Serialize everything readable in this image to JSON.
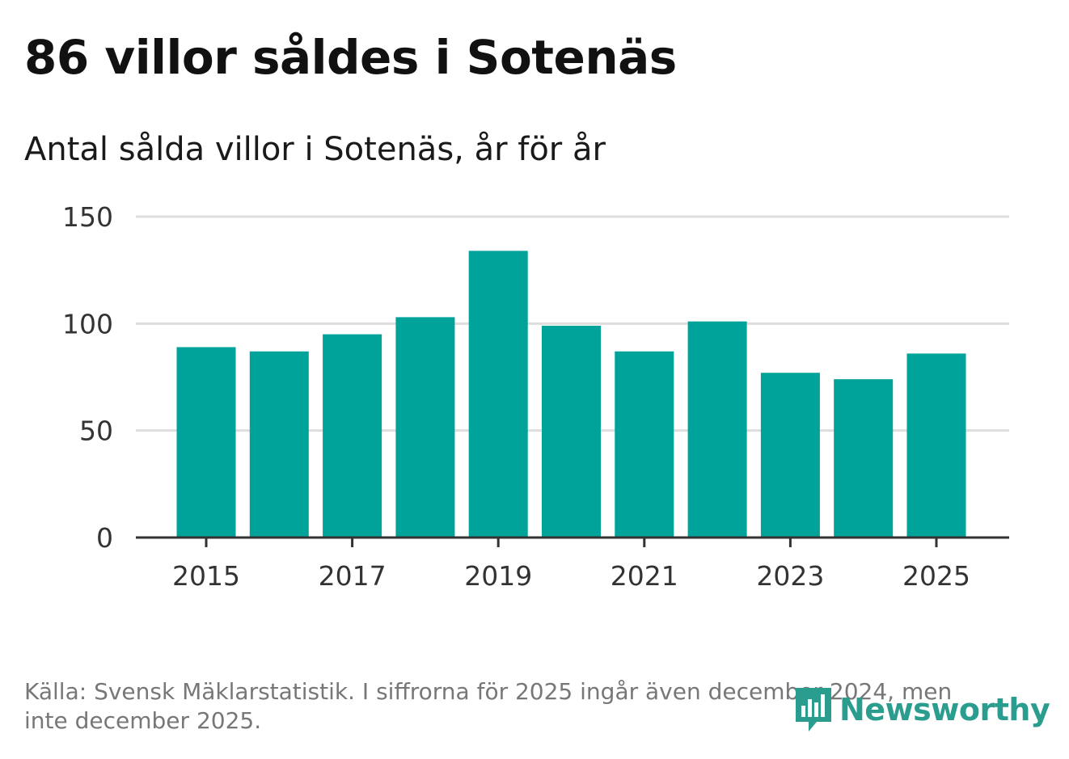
{
  "header": {
    "title": "86 villor såldes i Sotenäs",
    "subtitle": "Antal sålda villor i Sotenäs, år för år"
  },
  "footer": {
    "source": "Källa: Svensk Mäklarstatistik. I siffrorna för 2025 ingår även december 2024, men inte december 2025.",
    "logo_text": "Newsworthy"
  },
  "colors": {
    "bar": "#00a39a",
    "grid": "#dddddd",
    "axis": "#333333",
    "logo": "#2a9d8f"
  },
  "chart_data": {
    "type": "bar",
    "title": "86 villor såldes i Sotenäs",
    "subtitle": "Antal sålda villor i Sotenäs, år för år",
    "xlabel": "",
    "ylabel": "",
    "categories": [
      "2015",
      "2016",
      "2017",
      "2018",
      "2019",
      "2020",
      "2021",
      "2022",
      "2023",
      "2024",
      "2025"
    ],
    "values": [
      89,
      87,
      95,
      103,
      134,
      99,
      87,
      101,
      77,
      74,
      86
    ],
    "x_tick_labels": [
      "2015",
      "2017",
      "2019",
      "2021",
      "2023",
      "2025"
    ],
    "y_ticks": [
      0,
      50,
      100,
      150
    ],
    "ylim": [
      0,
      150
    ],
    "grid": true,
    "legend": "none"
  }
}
